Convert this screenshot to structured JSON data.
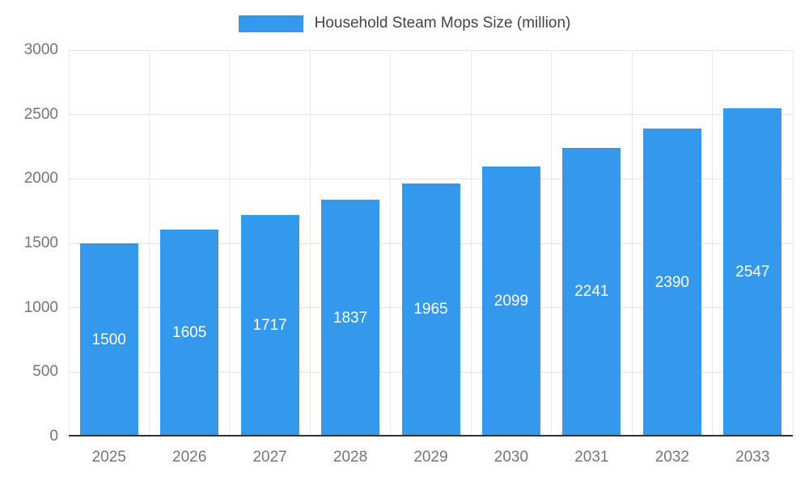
{
  "chart_data": {
    "type": "bar",
    "title": "Household Steam Mops Size (million)",
    "categories": [
      "2025",
      "2026",
      "2027",
      "2028",
      "2029",
      "2030",
      "2031",
      "2032",
      "2033"
    ],
    "values": [
      1500,
      1605,
      1717,
      1837,
      1965,
      2099,
      2241,
      2390,
      2547
    ],
    "series": [
      {
        "name": "Household Steam Mops Size (million)",
        "values": [
          1500,
          1605,
          1717,
          1837,
          1965,
          2099,
          2241,
          2390,
          2547
        ]
      }
    ],
    "xlabel": "",
    "ylabel": "",
    "ylim": [
      0,
      3000
    ],
    "yticks": [
      0,
      500,
      1000,
      1500,
      2000,
      2500,
      3000
    ],
    "grid": true,
    "legend_position": "top",
    "colors": {
      "bar": "#3498EC",
      "bar_value_label": "#ffffff",
      "axis_text": "#757575",
      "legend_text": "#444444",
      "gridline": "#e3e3e3",
      "baseline": "#333333"
    }
  }
}
